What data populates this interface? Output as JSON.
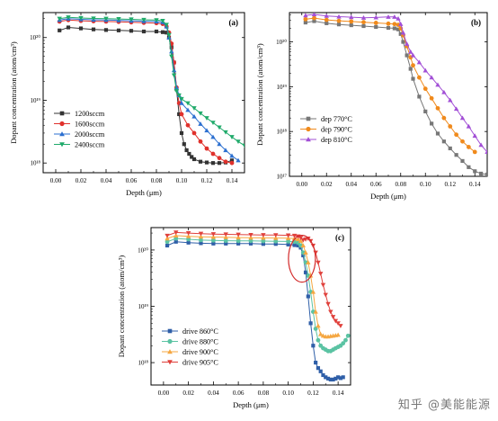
{
  "chart_data": [
    {
      "panel_label": "(a)",
      "type": "line",
      "xlabel": "Depth (μm)",
      "ylabel": "Dopant concentration (atom/cm³)",
      "xlim": [
        -0.01,
        0.15
      ],
      "ylim": [
        7e+17,
        2.5e+20
      ],
      "y_scale": "log",
      "x_ticks": [
        "0.00",
        "0.02",
        "0.04",
        "0.06",
        "0.08",
        "0.10",
        "0.12",
        "0.14"
      ],
      "y_ticks": [
        "10¹⁸",
        "10¹⁹",
        "10²⁰"
      ],
      "legend_position": "left-center",
      "series": [
        {
          "name": "1200sccm",
          "color": "#333333",
          "marker": "square",
          "x": [
            0.003,
            0.01,
            0.02,
            0.03,
            0.04,
            0.05,
            0.06,
            0.07,
            0.08,
            0.085,
            0.088,
            0.09,
            0.092,
            0.094,
            0.096,
            0.098,
            0.1,
            0.102,
            0.104,
            0.106,
            0.108,
            0.11,
            0.115,
            0.12,
            0.125,
            0.13,
            0.135,
            0.14
          ],
          "y": [
            1.3e+20,
            1.45e+20,
            1.4e+20,
            1.35e+20,
            1.32e+20,
            1.3e+20,
            1.28e+20,
            1.25e+20,
            1.25e+20,
            1.22e+20,
            1.2e+20,
            1e+20,
            7e+19,
            4e+19,
            1.5e+19,
            6e+18,
            3e+18,
            2e+18,
            1.6e+18,
            1.4e+18,
            1.25e+18,
            1.15e+18,
            1.05e+18,
            1.02e+18,
            1e+18,
            1e+18,
            1.02e+18,
            1.1e+18
          ]
        },
        {
          "name": "1600sccm",
          "color": "#e0312c",
          "marker": "circle",
          "x": [
            0.003,
            0.01,
            0.02,
            0.03,
            0.04,
            0.05,
            0.06,
            0.07,
            0.08,
            0.085,
            0.088,
            0.09,
            0.092,
            0.094,
            0.096,
            0.098,
            0.1,
            0.105,
            0.11,
            0.115,
            0.12,
            0.125,
            0.13,
            0.135,
            0.14
          ],
          "y": [
            1.8e+20,
            1.9e+20,
            1.85e+20,
            1.82e+20,
            1.8e+20,
            1.78e+20,
            1.75e+20,
            1.72e+20,
            1.7e+20,
            1.65e+20,
            1.5e+20,
            1.2e+20,
            8e+19,
            4e+19,
            1.6e+19,
            9e+18,
            6e+18,
            4e+18,
            3e+18,
            2.2e+18,
            1.7e+18,
            1.4e+18,
            1.2e+18,
            1.05e+18,
            1e+18
          ]
        },
        {
          "name": "2000sccm",
          "color": "#2b6fd0",
          "marker": "triangle-up",
          "x": [
            0.003,
            0.01,
            0.02,
            0.03,
            0.04,
            0.05,
            0.06,
            0.07,
            0.08,
            0.085,
            0.088,
            0.09,
            0.092,
            0.094,
            0.096,
            0.098,
            0.1,
            0.105,
            0.11,
            0.115,
            0.12,
            0.125,
            0.13,
            0.135,
            0.14,
            0.145
          ],
          "y": [
            1.9e+20,
            2e+20,
            1.95e+20,
            1.92e+20,
            1.9e+20,
            1.88e+20,
            1.85e+20,
            1.82e+20,
            1.8e+20,
            1.75e+20,
            1.5e+20,
            1e+20,
            6e+19,
            3e+19,
            1.6e+19,
            1.2e+19,
            9e+18,
            7e+18,
            5.5e+18,
            4.2e+18,
            3.3e+18,
            2.6e+18,
            2e+18,
            1.6e+18,
            1.3e+18,
            1.1e+18
          ]
        },
        {
          "name": "2400sccm",
          "color": "#1faa6a",
          "marker": "triangle-down",
          "x": [
            0.003,
            0.01,
            0.02,
            0.03,
            0.04,
            0.05,
            0.06,
            0.07,
            0.08,
            0.085,
            0.088,
            0.09,
            0.092,
            0.094,
            0.096,
            0.098,
            0.1,
            0.105,
            0.11,
            0.115,
            0.12,
            0.125,
            0.13,
            0.135,
            0.14,
            0.145,
            0.15
          ],
          "y": [
            2e+20,
            2.1e+20,
            2.05e+20,
            2.02e+20,
            2e+20,
            1.98e+20,
            1.95e+20,
            1.92e+20,
            1.9e+20,
            1.85e+20,
            1.6e+20,
            1.1e+20,
            5e+19,
            2.5e+19,
            1.4e+19,
            1.2e+19,
            1.05e+19,
            9e+18,
            7.5e+18,
            6.2e+18,
            5.2e+18,
            4.4e+18,
            3.7e+18,
            3.1e+18,
            2.6e+18,
            2.2e+18,
            1.9e+18
          ]
        }
      ]
    },
    {
      "panel_label": "(b)",
      "type": "line",
      "xlabel": "Depth (μm)",
      "ylabel": "Dopant concentration (atom/cm³)",
      "xlim": [
        -0.01,
        0.15
      ],
      "ylim": [
        1e+17,
        4.5e+20
      ],
      "y_scale": "log",
      "x_ticks": [
        "0.00",
        "0.02",
        "0.04",
        "0.06",
        "0.08",
        "0.10",
        "0.12",
        "0.14"
      ],
      "y_ticks": [
        "10¹⁷",
        "10¹⁸",
        "10¹⁹",
        "10²⁰"
      ],
      "legend_position": "left-bottom",
      "series": [
        {
          "name": "dep 770°C",
          "color": "#777777",
          "marker": "square",
          "x": [
            0.003,
            0.01,
            0.02,
            0.03,
            0.04,
            0.05,
            0.06,
            0.07,
            0.075,
            0.078,
            0.08,
            0.082,
            0.085,
            0.088,
            0.09,
            0.095,
            0.1,
            0.105,
            0.11,
            0.115,
            0.12,
            0.125,
            0.13,
            0.135,
            0.14,
            0.145,
            0.15
          ],
          "y": [
            2.7e+20,
            2.9e+20,
            2.6e+20,
            2.45e+20,
            2.35e+20,
            2.25e+20,
            2.15e+20,
            2.05e+20,
            2e+20,
            1.9e+20,
            1.5e+20,
            1e+20,
            5e+19,
            2.5e+19,
            1.5e+19,
            6e+18,
            2.8e+18,
            1.5e+18,
            9e+17,
            6e+17,
            4.2e+17,
            3e+17,
            2.2e+17,
            1.6e+17,
            1.3e+17,
            1.15e+17,
            1.1e+17
          ]
        },
        {
          "name": "dep 790°C",
          "color": "#f08a1c",
          "marker": "circle",
          "x": [
            0.003,
            0.01,
            0.02,
            0.03,
            0.04,
            0.05,
            0.06,
            0.07,
            0.075,
            0.078,
            0.08,
            0.082,
            0.085,
            0.088,
            0.09,
            0.095,
            0.1,
            0.105,
            0.11,
            0.115,
            0.12,
            0.125,
            0.13,
            0.135,
            0.14
          ],
          "y": [
            3.2e+20,
            3.4e+20,
            3.1e+20,
            2.95e+20,
            2.85e+20,
            2.75e+20,
            2.65e+20,
            2.55e+20,
            2.5e+20,
            2.4e+20,
            2e+20,
            1.4e+20,
            8e+19,
            4.5e+19,
            3e+19,
            1.6e+19,
            9e+18,
            5.5e+18,
            3.3e+18,
            2e+18,
            1.3e+18,
            8.5e+17,
            6e+17,
            4.5e+17,
            3.5e+17
          ]
        },
        {
          "name": "dep 810°C",
          "color": "#a24fd6",
          "marker": "triangle-up",
          "x": [
            0.003,
            0.01,
            0.02,
            0.03,
            0.04,
            0.05,
            0.06,
            0.07,
            0.075,
            0.078,
            0.08,
            0.082,
            0.085,
            0.088,
            0.09,
            0.095,
            0.1,
            0.105,
            0.11,
            0.115,
            0.12,
            0.125,
            0.13,
            0.135,
            0.14,
            0.145,
            0.15
          ],
          "y": [
            3.9e+20,
            4.1e+20,
            3.8e+20,
            3.65e+20,
            3.55e+20,
            3.45e+20,
            3.5e+20,
            3.6e+20,
            3.6e+20,
            3.3e+20,
            2.5e+20,
            1.6e+20,
            9e+19,
            6e+19,
            5e+19,
            3.5e+19,
            2.3e+19,
            1.6e+19,
            1.1e+19,
            7.5e+18,
            5e+18,
            3.2e+18,
            2e+18,
            1.3e+18,
            8e+17,
            5e+17,
            3.5e+17
          ]
        }
      ]
    },
    {
      "panel_label": "(c)",
      "type": "line",
      "xlabel": "Depth (μm)",
      "ylabel": "Dopant concentration (atom/cm³)",
      "xlim": [
        -0.01,
        0.15
      ],
      "ylim": [
        4e+17,
        2.5e+20
      ],
      "y_scale": "log",
      "x_ticks": [
        "0.00",
        "0.02",
        "0.04",
        "0.06",
        "0.08",
        "0.10",
        "0.12",
        "0.14"
      ],
      "y_ticks": [
        "10¹⁸",
        "10¹⁹",
        "10²⁰"
      ],
      "legend_position": "left-bottom",
      "annotation": "red ellipse around the profile drop near 0.11 μm",
      "series": [
        {
          "name": "drive 860°C",
          "color": "#2f5fa8",
          "marker": "square",
          "x": [
            0.003,
            0.01,
            0.02,
            0.03,
            0.04,
            0.05,
            0.06,
            0.07,
            0.08,
            0.09,
            0.1,
            0.105,
            0.108,
            0.11,
            0.112,
            0.114,
            0.116,
            0.118,
            0.12,
            0.122,
            0.124,
            0.126,
            0.128,
            0.13,
            0.132,
            0.134,
            0.136,
            0.138,
            0.14,
            0.142,
            0.144
          ],
          "y": [
            1.2e+20,
            1.4e+20,
            1.35e+20,
            1.32e+20,
            1.3e+20,
            1.3e+20,
            1.3e+20,
            1.3e+20,
            1.28e+20,
            1.28e+20,
            1.25e+20,
            1.22e+20,
            1.2e+20,
            1.1e+20,
            8e+19,
            4e+19,
            1.5e+19,
            5e+18,
            2e+18,
            1e+18,
            8e+17,
            7e+17,
            6e+17,
            5.5e+17,
            5.2e+17,
            5e+17,
            5e+17,
            5.2e+17,
            5.5e+17,
            5.3e+17,
            5.5e+17
          ]
        },
        {
          "name": "drive 880°C",
          "color": "#5bc3a3",
          "marker": "circle",
          "x": [
            0.003,
            0.01,
            0.02,
            0.03,
            0.04,
            0.05,
            0.06,
            0.07,
            0.08,
            0.09,
            0.1,
            0.105,
            0.108,
            0.11,
            0.112,
            0.114,
            0.116,
            0.118,
            0.12,
            0.122,
            0.124,
            0.126,
            0.128,
            0.13,
            0.132,
            0.134,
            0.136,
            0.138,
            0.14,
            0.142,
            0.144,
            0.146,
            0.148
          ],
          "y": [
            1.4e+20,
            1.6e+20,
            1.55e+20,
            1.5e+20,
            1.48e+20,
            1.46e+20,
            1.45e+20,
            1.45e+20,
            1.44e+20,
            1.43e+20,
            1.42e+20,
            1.4e+20,
            1.35e+20,
            1.2e+20,
            9e+19,
            6e+19,
            3.5e+19,
            1.8e+19,
            8e+18,
            4e+18,
            2.5e+18,
            2e+18,
            1.8e+18,
            1.7e+18,
            1.6e+18,
            1.6e+18,
            1.7e+18,
            1.8e+18,
            1.9e+18,
            2e+18,
            2.2e+18,
            2.5e+18,
            3e+18
          ]
        },
        {
          "name": "drive 900°C",
          "color": "#f5a742",
          "marker": "triangle-up",
          "x": [
            0.003,
            0.01,
            0.02,
            0.03,
            0.04,
            0.05,
            0.06,
            0.07,
            0.08,
            0.09,
            0.1,
            0.105,
            0.108,
            0.11,
            0.112,
            0.114,
            0.116,
            0.118,
            0.12,
            0.122,
            0.124,
            0.126,
            0.128,
            0.13,
            0.132,
            0.134,
            0.136,
            0.138,
            0.14
          ],
          "y": [
            1.6e+20,
            1.8e+20,
            1.75e+20,
            1.72e+20,
            1.7e+20,
            1.68e+20,
            1.66e+20,
            1.65e+20,
            1.64e+20,
            1.63e+20,
            1.62e+20,
            1.6e+20,
            1.55e+20,
            1.45e+20,
            1.2e+20,
            9e+19,
            6e+19,
            3.5e+19,
            1.8e+19,
            8e+18,
            4.5e+18,
            3.2e+18,
            3e+18,
            2.9e+18,
            2.9e+18,
            2.95e+18,
            3e+18,
            3.05e+18,
            3.1e+18
          ]
        },
        {
          "name": "drive 905°C",
          "color": "#e0413c",
          "marker": "triangle-down",
          "x": [
            0.003,
            0.01,
            0.02,
            0.03,
            0.04,
            0.05,
            0.06,
            0.07,
            0.08,
            0.09,
            0.1,
            0.105,
            0.108,
            0.11,
            0.112,
            0.114,
            0.116,
            0.118,
            0.12,
            0.122,
            0.124,
            0.126,
            0.128,
            0.13,
            0.132,
            0.134,
            0.136,
            0.138,
            0.14,
            0.142
          ],
          "y": [
            1.8e+20,
            2.05e+20,
            2e+20,
            1.95e+20,
            1.92e+20,
            1.9e+20,
            1.88e+20,
            1.86e+20,
            1.85e+20,
            1.84e+20,
            1.82e+20,
            1.8e+20,
            1.75e+20,
            1.65e+20,
            1.5e+20,
            1.55e+20,
            1.6e+20,
            1.45e+20,
            1.2e+20,
            9e+19,
            6e+19,
            3.8e+19,
            2.4e+19,
            1.6e+19,
            1.1e+19,
            8e+18,
            6.5e+18,
            5.5e+18,
            5e+18,
            4.5e+18
          ]
        }
      ]
    }
  ],
  "watermark": "知乎 @美能能源"
}
